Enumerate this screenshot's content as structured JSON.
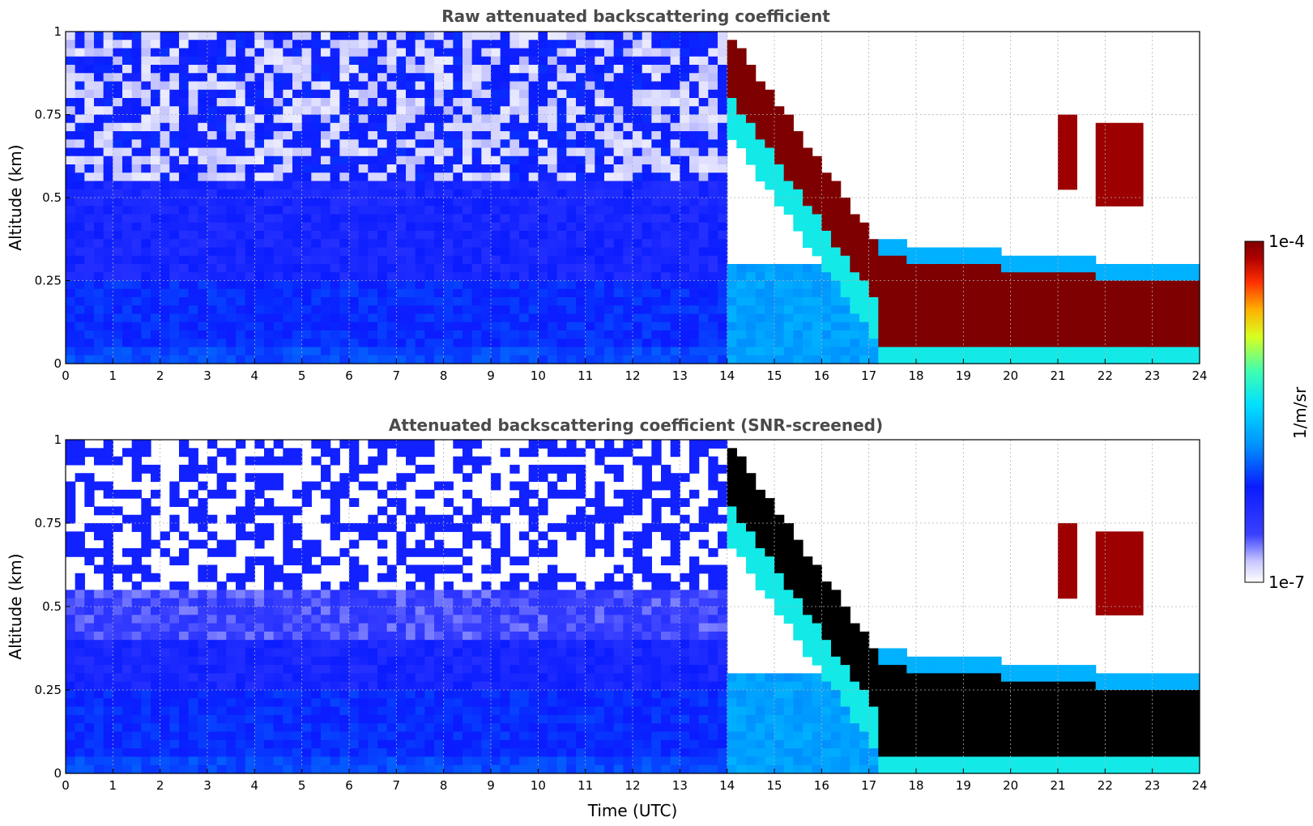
{
  "chart_data": [
    {
      "type": "heatmap",
      "title": "Raw attenuated backscattering coefficient",
      "xlabel": "",
      "ylabel": "Altitude (km)",
      "xlim": [
        0,
        24
      ],
      "ylim": [
        0,
        1
      ],
      "xticks": [
        "0",
        "1",
        "2",
        "3",
        "4",
        "5",
        "6",
        "7",
        "8",
        "9",
        "10",
        "11",
        "12",
        "13",
        "14",
        "15",
        "16",
        "17",
        "18",
        "19",
        "20",
        "21",
        "22",
        "23",
        "24"
      ],
      "yticks": [
        "0",
        "0.25",
        "0.5",
        "0.75",
        "1"
      ],
      "grid": true,
      "features": [
        {
          "kind": "boundary-layer",
          "x": [
            0,
            14
          ],
          "y": [
            0,
            0.25
          ],
          "level": 0.35
        },
        {
          "kind": "residual-layer",
          "x": [
            0,
            14
          ],
          "y": [
            0.25,
            0.6
          ],
          "level": 0.25
        },
        {
          "kind": "noise",
          "x": [
            0,
            14
          ],
          "y": [
            0.6,
            1.0
          ],
          "level": 0.18
        },
        {
          "kind": "cloud-descending",
          "x": [
            14.1,
            17.1
          ],
          "y_top": [
            1.0,
            0.35
          ],
          "thickness": 0.15,
          "level": 1.0
        },
        {
          "kind": "cloud-layer",
          "x": [
            17.1,
            24
          ],
          "y": [
            0.05,
            0.3
          ],
          "level": 1.0
        },
        {
          "kind": "cloud-high",
          "x": [
            21,
            22.8
          ],
          "y": [
            0.5,
            0.75
          ],
          "level": 0.95
        }
      ]
    },
    {
      "type": "heatmap",
      "title": "Attenuated backscattering coefficient (SNR-screened)",
      "xlabel": "Time (UTC)",
      "ylabel": "Altitude (km)",
      "xlim": [
        0,
        24
      ],
      "ylim": [
        0,
        1
      ],
      "xticks": [
        "0",
        "1",
        "2",
        "3",
        "4",
        "5",
        "6",
        "7",
        "8",
        "9",
        "10",
        "11",
        "12",
        "13",
        "14",
        "15",
        "16",
        "17",
        "18",
        "19",
        "20",
        "21",
        "22",
        "23",
        "24"
      ],
      "yticks": [
        "0",
        "0.25",
        "0.5",
        "0.75",
        "1"
      ],
      "grid": true,
      "saturated_color": "#000000"
    }
  ],
  "colorbar": {
    "min_label": "1e-7",
    "max_label": "1e-4",
    "label": "1/m/sr",
    "colormap": "jet-with-white-low"
  },
  "colors": {
    "background": "#ffffff",
    "low": "#ffffff",
    "mid": "#0a1cff",
    "high": "#7f0000",
    "saturated": "#000000"
  }
}
